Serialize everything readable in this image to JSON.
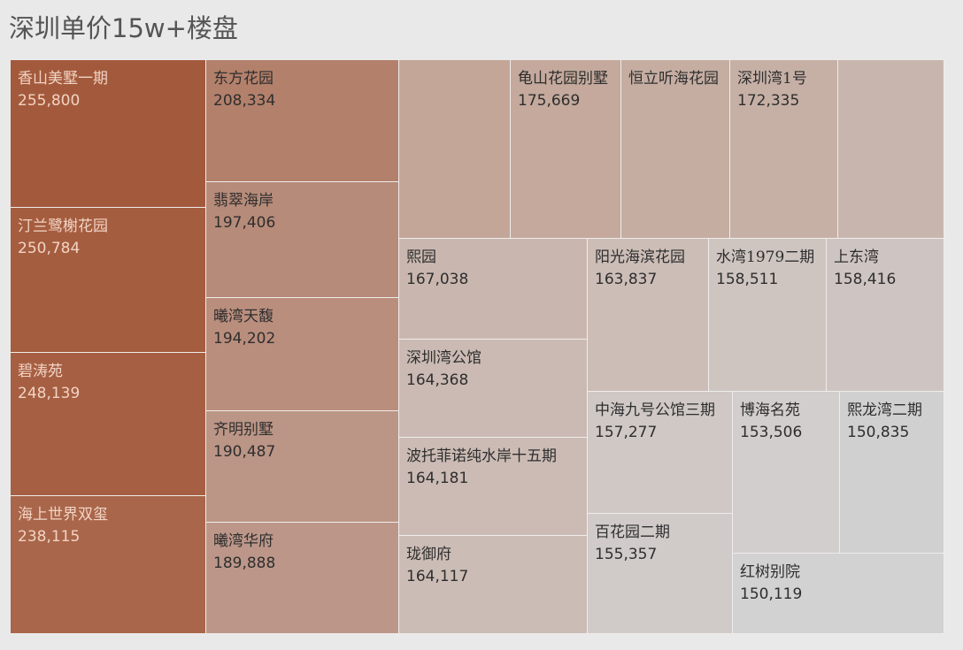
{
  "chart_data": {
    "type": "treemap",
    "title": "深圳单价15w+楼盘",
    "items": [
      {
        "name": "香山美墅一期",
        "value": 255800,
        "color": "#a35a3c"
      },
      {
        "name": "汀兰鹭榭花园",
        "value": 250784,
        "color": "#a55d3f"
      },
      {
        "name": "碧涛苑",
        "value": 248139,
        "color": "#a65f42"
      },
      {
        "name": "海上世界双玺",
        "value": 238115,
        "color": "#a9664a"
      },
      {
        "name": "东方花园",
        "value": 208334,
        "color": "#b3806b"
      },
      {
        "name": "翡翠海岸",
        "value": 197406,
        "color": "#b78b79"
      },
      {
        "name": "曦湾天馥",
        "value": 194202,
        "color": "#ba8e7d"
      },
      {
        "name": "齐明别墅",
        "value": 190487,
        "color": "#bb9586"
      },
      {
        "name": "曦湾华府",
        "value": 189888,
        "color": "#bc9789"
      },
      {
        "name": null,
        "value": null,
        "color": "#c3a698"
      },
      {
        "name": "龟山花园别墅",
        "value": 175669,
        "color": "#c4a99c"
      },
      {
        "name": "恒立听海花园",
        "value": null,
        "color": "#c5ada2"
      },
      {
        "name": "深圳湾1号",
        "value": 172335,
        "color": "#c6b0a6"
      },
      {
        "name": null,
        "value": null,
        "color": "#c8b6ae"
      },
      {
        "name": "熙园",
        "value": 167038,
        "color": "#c9b7af"
      },
      {
        "name": "深圳湾公馆",
        "value": 164368,
        "color": "#cabab3"
      },
      {
        "name": "波托菲诺纯水岸十五期",
        "value": 164181,
        "color": "#cbbbb4"
      },
      {
        "name": "珑御府",
        "value": 164117,
        "color": "#cbbcb5"
      },
      {
        "name": "阳光海滨花园",
        "value": 163837,
        "color": "#ccbdb7"
      },
      {
        "name": "水湾1979二期",
        "value": 158511,
        "color": "#cec5c1"
      },
      {
        "name": "上东湾",
        "value": 158416,
        "color": "#cec5c2"
      },
      {
        "name": "中海九号公馆三期",
        "value": 157277,
        "color": "#cfc8c5"
      },
      {
        "name": "百花园二期",
        "value": 155357,
        "color": "#d0cbc9"
      },
      {
        "name": "博海名苑",
        "value": 153506,
        "color": "#d1cecd"
      },
      {
        "name": "熙龙湾二期",
        "value": 150835,
        "color": "#d1d0d0"
      },
      {
        "name": "红树别院",
        "value": 150119,
        "color": "#d3d2d2"
      }
    ]
  }
}
